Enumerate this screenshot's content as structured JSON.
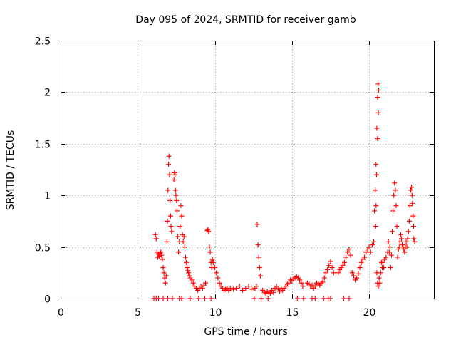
{
  "chart_data": {
    "type": "scatter",
    "title": "Day 095 of 2024, SRMTID for receiver gamb",
    "xlabel": "GPS time / hours",
    "ylabel": "SRMTID / TECUs",
    "xlim": [
      0,
      24.2
    ],
    "ylim": [
      0,
      2.5
    ],
    "xticks": [
      0,
      5,
      10,
      15,
      20
    ],
    "xtick_labels": [
      "0",
      "5",
      "10",
      "15",
      "20"
    ],
    "yticks": [
      0,
      0.5,
      1,
      1.5,
      2,
      2.5
    ],
    "ytick_labels": [
      "0",
      "0.5",
      "1",
      "1.5",
      "2",
      "2.5"
    ],
    "grid": true,
    "marker": "plus",
    "marker_color": "#ff0000",
    "series": [
      {
        "name": "gamb",
        "points": [
          [
            6.05,
            0.0
          ],
          [
            6.15,
            0.62
          ],
          [
            6.2,
            0.58
          ],
          [
            6.25,
            0.45
          ],
          [
            6.3,
            0.4
          ],
          [
            6.35,
            0.43
          ],
          [
            6.4,
            0.41
          ],
          [
            6.45,
            0.44
          ],
          [
            6.5,
            0.45
          ],
          [
            6.55,
            0.42
          ],
          [
            6.6,
            0.38
          ],
          [
            6.65,
            0.3
          ],
          [
            6.7,
            0.25
          ],
          [
            6.75,
            0.2
          ],
          [
            6.8,
            0.15
          ],
          [
            6.85,
            0.22
          ],
          [
            6.9,
            0.55
          ],
          [
            6.93,
            0.75
          ],
          [
            6.96,
            1.05
          ],
          [
            7.0,
            1.3
          ],
          [
            7.03,
            1.38
          ],
          [
            7.06,
            1.2
          ],
          [
            7.1,
            0.95
          ],
          [
            7.13,
            0.8
          ],
          [
            7.16,
            0.7
          ],
          [
            7.2,
            0.65
          ],
          [
            6.2,
            0.0
          ],
          [
            6.35,
            0.0
          ],
          [
            6.65,
            0.0
          ],
          [
            6.95,
            0.0
          ],
          [
            7.25,
            0.0
          ],
          [
            7.35,
            1.15
          ],
          [
            7.38,
            1.22
          ],
          [
            7.42,
            1.2
          ],
          [
            7.45,
            1.05
          ],
          [
            7.48,
            1.0
          ],
          [
            7.52,
            0.95
          ],
          [
            7.55,
            0.85
          ],
          [
            7.6,
            0.6
          ],
          [
            7.65,
            0.45
          ],
          [
            7.7,
            0.55
          ],
          [
            7.75,
            0.7
          ],
          [
            7.8,
            0.9
          ],
          [
            7.85,
            0.8
          ],
          [
            7.9,
            0.62
          ],
          [
            7.95,
            0.55
          ],
          [
            8.0,
            0.6
          ],
          [
            8.05,
            0.5
          ],
          [
            8.1,
            0.4
          ],
          [
            8.15,
            0.35
          ],
          [
            8.2,
            0.3
          ],
          [
            8.25,
            0.27
          ],
          [
            8.3,
            0.25
          ],
          [
            8.35,
            0.22
          ],
          [
            8.4,
            0.2
          ],
          [
            8.5,
            0.18
          ],
          [
            8.6,
            0.15
          ],
          [
            8.7,
            0.12
          ],
          [
            8.8,
            0.1
          ],
          [
            8.9,
            0.08
          ],
          [
            9.0,
            0.1
          ],
          [
            9.1,
            0.12
          ],
          [
            9.2,
            0.1
          ],
          [
            9.3,
            0.13
          ],
          [
            9.4,
            0.15
          ],
          [
            7.7,
            0.0
          ],
          [
            7.85,
            0.0
          ],
          [
            8.4,
            0.0
          ],
          [
            8.95,
            0.0
          ],
          [
            9.5,
            0.66
          ],
          [
            9.55,
            0.67
          ],
          [
            9.6,
            0.65
          ],
          [
            9.65,
            0.5
          ],
          [
            9.7,
            0.45
          ],
          [
            9.75,
            0.35
          ],
          [
            9.8,
            0.3
          ],
          [
            9.85,
            0.38
          ],
          [
            9.9,
            0.35
          ],
          [
            10.0,
            0.3
          ],
          [
            10.1,
            0.25
          ],
          [
            10.2,
            0.2
          ],
          [
            10.3,
            0.15
          ],
          [
            10.4,
            0.12
          ],
          [
            10.5,
            0.1
          ],
          [
            10.6,
            0.08
          ],
          [
            10.7,
            0.09
          ],
          [
            10.8,
            0.1
          ],
          [
            10.9,
            0.08
          ],
          [
            11.0,
            0.1
          ],
          [
            11.2,
            0.09
          ],
          [
            11.4,
            0.1
          ],
          [
            11.6,
            0.12
          ],
          [
            11.8,
            0.08
          ],
          [
            12.0,
            0.1
          ],
          [
            12.2,
            0.12
          ],
          [
            12.4,
            0.09
          ],
          [
            12.6,
            0.1
          ],
          [
            12.7,
            0.12
          ],
          [
            9.35,
            0.0
          ],
          [
            9.75,
            0.0
          ],
          [
            12.75,
            0.72
          ],
          [
            12.8,
            0.52
          ],
          [
            12.85,
            0.4
          ],
          [
            12.9,
            0.3
          ],
          [
            12.95,
            0.22
          ],
          [
            13.0,
            0.0
          ],
          [
            13.1,
            0.08
          ],
          [
            13.2,
            0.06
          ],
          [
            13.3,
            0.05
          ],
          [
            13.4,
            0.07
          ],
          [
            13.5,
            0.06
          ],
          [
            13.6,
            0.05
          ],
          [
            13.7,
            0.08
          ],
          [
            13.8,
            0.06
          ],
          [
            13.9,
            0.1
          ],
          [
            14.0,
            0.12
          ],
          [
            14.1,
            0.09
          ],
          [
            14.2,
            0.07
          ],
          [
            14.3,
            0.1
          ],
          [
            14.4,
            0.08
          ],
          [
            14.5,
            0.1
          ],
          [
            14.6,
            0.12
          ],
          [
            14.7,
            0.14
          ],
          [
            14.8,
            0.15
          ],
          [
            14.9,
            0.18
          ],
          [
            15.0,
            0.17
          ],
          [
            15.1,
            0.19
          ],
          [
            15.2,
            0.2
          ],
          [
            15.3,
            0.21
          ],
          [
            15.4,
            0.2
          ],
          [
            15.5,
            0.18
          ],
          [
            15.6,
            0.15
          ],
          [
            15.7,
            0.12
          ],
          [
            12.55,
            0.0
          ],
          [
            13.45,
            0.0
          ],
          [
            15.35,
            0.0
          ],
          [
            15.75,
            0.0
          ],
          [
            16.0,
            0.15
          ],
          [
            16.1,
            0.14
          ],
          [
            16.2,
            0.12
          ],
          [
            16.3,
            0.13
          ],
          [
            16.4,
            0.1
          ],
          [
            16.5,
            0.12
          ],
          [
            16.6,
            0.15
          ],
          [
            16.7,
            0.14
          ],
          [
            16.8,
            0.13
          ],
          [
            16.9,
            0.15
          ],
          [
            17.0,
            0.16
          ],
          [
            17.1,
            0.2
          ],
          [
            17.2,
            0.25
          ],
          [
            17.3,
            0.28
          ],
          [
            17.4,
            0.32
          ],
          [
            17.5,
            0.36
          ],
          [
            17.6,
            0.3
          ],
          [
            17.7,
            0.25
          ],
          [
            16.3,
            0.0
          ],
          [
            16.5,
            0.0
          ],
          [
            17.05,
            0.0
          ],
          [
            17.35,
            0.0
          ],
          [
            17.5,
            0.0
          ],
          [
            18.0,
            0.25
          ],
          [
            18.1,
            0.28
          ],
          [
            18.2,
            0.3
          ],
          [
            18.3,
            0.32
          ],
          [
            18.4,
            0.35
          ],
          [
            18.5,
            0.4
          ],
          [
            18.6,
            0.45
          ],
          [
            18.7,
            0.48
          ],
          [
            18.8,
            0.42
          ],
          [
            18.9,
            0.25
          ],
          [
            19.0,
            0.22
          ],
          [
            19.1,
            0.18
          ],
          [
            19.2,
            0.2
          ],
          [
            19.3,
            0.24
          ],
          [
            19.4,
            0.3
          ],
          [
            19.5,
            0.35
          ],
          [
            19.6,
            0.38
          ],
          [
            19.7,
            0.4
          ],
          [
            19.8,
            0.45
          ],
          [
            19.9,
            0.48
          ],
          [
            20.0,
            0.5
          ],
          [
            20.1,
            0.45
          ],
          [
            20.2,
            0.52
          ],
          [
            18.35,
            0.0
          ],
          [
            18.7,
            0.0
          ],
          [
            20.3,
            0.55
          ],
          [
            20.35,
            0.85
          ],
          [
            20.4,
            1.05
          ],
          [
            20.45,
            1.3
          ],
          [
            20.5,
            1.65
          ],
          [
            20.55,
            1.95
          ],
          [
            20.58,
            2.08
          ],
          [
            20.62,
            2.02
          ],
          [
            20.6,
            1.8
          ],
          [
            20.55,
            1.55
          ],
          [
            20.48,
            1.2
          ],
          [
            20.45,
            0.9
          ],
          [
            20.42,
            0.7
          ],
          [
            20.5,
            0.25
          ],
          [
            20.55,
            0.15
          ],
          [
            20.6,
            0.12
          ],
          [
            20.65,
            0.2
          ],
          [
            20.7,
            0.15
          ],
          [
            20.75,
            0.25
          ],
          [
            20.8,
            0.35
          ],
          [
            20.85,
            0.3
          ],
          [
            20.9,
            0.35
          ],
          [
            20.95,
            0.3
          ],
          [
            21.0,
            0.38
          ],
          [
            21.1,
            0.4
          ],
          [
            21.2,
            0.45
          ],
          [
            21.25,
            0.55
          ],
          [
            21.3,
            0.45
          ],
          [
            21.35,
            0.5
          ],
          [
            21.4,
            0.3
          ],
          [
            21.45,
            0.42
          ],
          [
            21.5,
            0.65
          ],
          [
            21.55,
            0.85
          ],
          [
            21.6,
            1.0
          ],
          [
            21.65,
            1.12
          ],
          [
            21.7,
            1.05
          ],
          [
            21.75,
            0.9
          ],
          [
            21.8,
            0.7
          ],
          [
            21.85,
            0.4
          ],
          [
            21.9,
            0.48
          ],
          [
            21.95,
            0.5
          ],
          [
            22.0,
            0.55
          ],
          [
            22.05,
            0.62
          ],
          [
            22.1,
            0.58
          ],
          [
            22.15,
            0.52
          ],
          [
            22.2,
            0.5
          ],
          [
            22.25,
            0.48
          ],
          [
            22.3,
            0.45
          ],
          [
            22.35,
            0.5
          ],
          [
            22.4,
            0.55
          ],
          [
            22.45,
            0.5
          ],
          [
            22.5,
            0.58
          ],
          [
            22.55,
            0.65
          ],
          [
            22.6,
            0.75
          ],
          [
            22.65,
            0.9
          ],
          [
            22.7,
            1.05
          ],
          [
            22.75,
            1.08
          ],
          [
            22.78,
            1.0
          ],
          [
            22.8,
            0.92
          ],
          [
            22.85,
            0.8
          ],
          [
            22.88,
            0.7
          ],
          [
            22.9,
            0.58
          ],
          [
            22.95,
            0.55
          ]
        ]
      }
    ]
  }
}
